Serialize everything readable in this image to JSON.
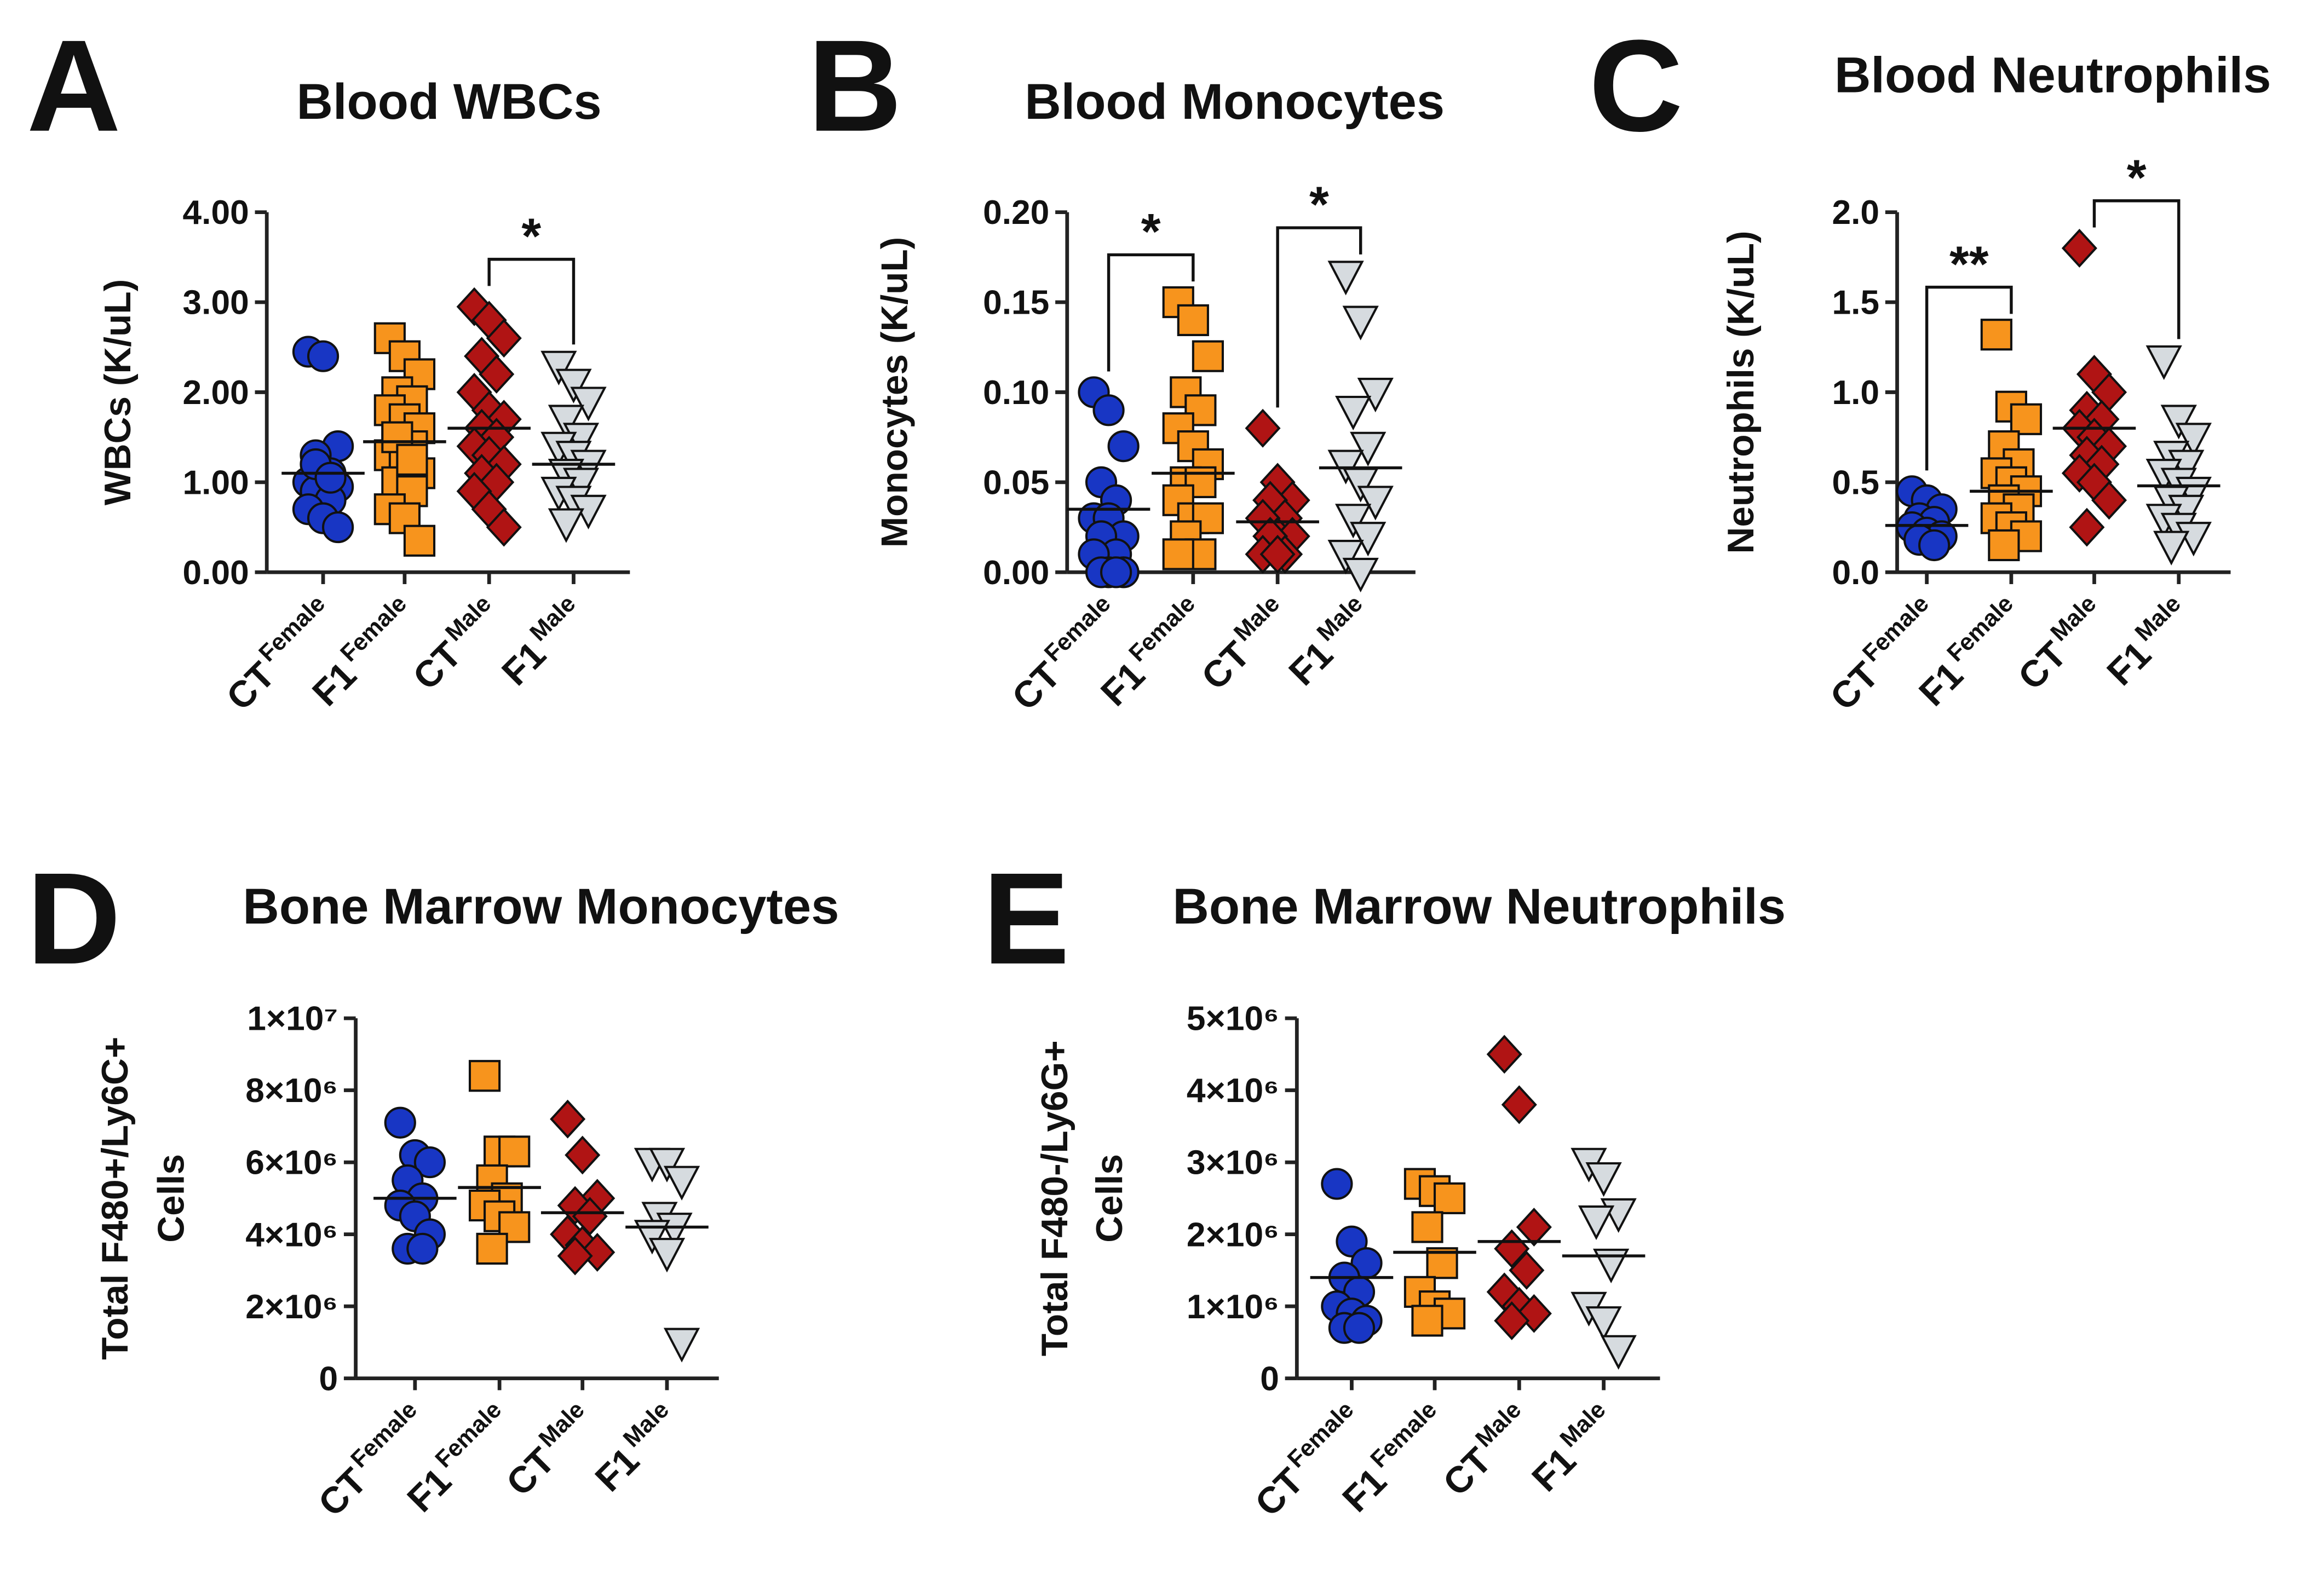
{
  "chart_data": [
    {
      "type": "scatter",
      "panel": "A",
      "title": "Blood WBCs",
      "ylabel": [
        "WBCs (K/uL)"
      ],
      "categories": [
        {
          "label": "CT",
          "sup": "Female"
        },
        {
          "label": "F1",
          "sup": "Female"
        },
        {
          "label": "CT",
          "sup": "Male"
        },
        {
          "label": "F1",
          "sup": "Male"
        }
      ],
      "ylim": [
        0,
        4
      ],
      "yticks": [
        {
          "value": 0,
          "label": "0.00"
        },
        {
          "value": 1,
          "label": "1.00"
        },
        {
          "value": 2,
          "label": "2.00"
        },
        {
          "value": 3,
          "label": "3.00"
        },
        {
          "value": 4,
          "label": "4.00"
        }
      ],
      "series": [
        {
          "marker": "circle",
          "color": "#1836c4",
          "mean": 1.1,
          "values": [
            2.45,
            2.4,
            1.4,
            1.3,
            1.1,
            1.0,
            1.0,
            0.95,
            0.9,
            0.8,
            0.7,
            0.6,
            0.5,
            1.2,
            1.05
          ]
        },
        {
          "marker": "square",
          "color": "#f7941d",
          "mean": 1.45,
          "values": [
            2.6,
            2.4,
            2.2,
            2.0,
            1.9,
            1.8,
            1.7,
            1.6,
            1.5,
            1.4,
            1.3,
            1.2,
            1.1,
            1.0,
            0.9,
            0.7,
            0.6,
            0.35,
            1.5,
            1.25
          ]
        },
        {
          "marker": "diamond",
          "color": "#b01414",
          "mean": 1.6,
          "values": [
            2.95,
            2.8,
            2.6,
            2.4,
            2.2,
            2.0,
            1.8,
            1.7,
            1.6,
            1.5,
            1.4,
            1.3,
            1.2,
            1.1,
            1.0,
            0.9,
            0.7,
            0.5
          ]
        },
        {
          "marker": "triangle-down",
          "color": "#d6dbdf",
          "mean": 1.2,
          "values": [
            2.3,
            2.1,
            1.9,
            1.7,
            1.5,
            1.4,
            1.3,
            1.2,
            1.1,
            1.0,
            0.9,
            0.8,
            0.7,
            0.55
          ]
        }
      ],
      "annotations": [
        {
          "text": "*",
          "from": 2,
          "to": 3
        }
      ]
    },
    {
      "type": "scatter",
      "panel": "B",
      "title": "Blood Monocytes",
      "ylabel": [
        "Monocytes (K/uL)"
      ],
      "categories": [
        {
          "label": "CT",
          "sup": "Female"
        },
        {
          "label": "F1",
          "sup": "Female"
        },
        {
          "label": "CT",
          "sup": "Male"
        },
        {
          "label": "F1",
          "sup": "Male"
        }
      ],
      "ylim": [
        0,
        0.2
      ],
      "yticks": [
        {
          "value": 0,
          "label": "0.00"
        },
        {
          "value": 0.05,
          "label": "0.05"
        },
        {
          "value": 0.1,
          "label": "0.10"
        },
        {
          "value": 0.15,
          "label": "0.15"
        },
        {
          "value": 0.2,
          "label": "0.20"
        }
      ],
      "series": [
        {
          "marker": "circle",
          "color": "#1836c4",
          "mean": 0.035,
          "values": [
            0.1,
            0.09,
            0.07,
            0.05,
            0.04,
            0.03,
            0.03,
            0.02,
            0.02,
            0.01,
            0.01,
            0,
            0,
            0,
            0
          ]
        },
        {
          "marker": "square",
          "color": "#f7941d",
          "mean": 0.055,
          "values": [
            0.15,
            0.14,
            0.12,
            0.1,
            0.09,
            0.08,
            0.07,
            0.06,
            0.05,
            0.05,
            0.04,
            0.03,
            0.03,
            0.02,
            0.01,
            0.01
          ]
        },
        {
          "marker": "diamond",
          "color": "#b01414",
          "mean": 0.028,
          "values": [
            0.08,
            0.05,
            0.04,
            0.04,
            0.03,
            0.03,
            0.02,
            0.02,
            0.02,
            0.01,
            0.01,
            0.01
          ]
        },
        {
          "marker": "triangle-down",
          "color": "#d6dbdf",
          "mean": 0.058,
          "values": [
            0.165,
            0.14,
            0.1,
            0.09,
            0.07,
            0.06,
            0.05,
            0.04,
            0.03,
            0.02,
            0.01,
            0
          ]
        }
      ],
      "annotations": [
        {
          "text": "*",
          "from": 0,
          "to": 1
        },
        {
          "text": "*",
          "from": 2,
          "to": 3
        }
      ]
    },
    {
      "type": "scatter",
      "panel": "C",
      "title": "Blood Neutrophils",
      "ylabel": [
        "Neutrophils (K/uL)"
      ],
      "categories": [
        {
          "label": "CT",
          "sup": "Female"
        },
        {
          "label": "F1",
          "sup": "Female"
        },
        {
          "label": "CT",
          "sup": "Male"
        },
        {
          "label": "F1",
          "sup": "Male"
        }
      ],
      "ylim": [
        0,
        2
      ],
      "yticks": [
        {
          "value": 0,
          "label": "0.0"
        },
        {
          "value": 0.5,
          "label": "0.5"
        },
        {
          "value": 1,
          "label": "1.0"
        },
        {
          "value": 1.5,
          "label": "1.5"
        },
        {
          "value": 2,
          "label": "2.0"
        }
      ],
      "series": [
        {
          "marker": "circle",
          "color": "#1836c4",
          "mean": 0.26,
          "values": [
            0.45,
            0.4,
            0.35,
            0.3,
            0.28,
            0.25,
            0.22,
            0.2,
            0.18,
            0.15
          ]
        },
        {
          "marker": "square",
          "color": "#f7941d",
          "mean": 0.45,
          "values": [
            1.32,
            0.92,
            0.85,
            0.7,
            0.6,
            0.55,
            0.5,
            0.45,
            0.4,
            0.35,
            0.3,
            0.25,
            0.2,
            0.15
          ]
        },
        {
          "marker": "diamond",
          "color": "#b01414",
          "mean": 0.8,
          "values": [
            1.8,
            1.1,
            1.0,
            0.9,
            0.85,
            0.8,
            0.75,
            0.7,
            0.65,
            0.6,
            0.55,
            0.5,
            0.4,
            0.25
          ]
        },
        {
          "marker": "triangle-down",
          "color": "#d6dbdf",
          "mean": 0.48,
          "values": [
            1.18,
            0.85,
            0.75,
            0.65,
            0.6,
            0.55,
            0.5,
            0.45,
            0.4,
            0.35,
            0.3,
            0.25,
            0.2,
            0.15
          ]
        }
      ],
      "annotations": [
        {
          "text": "**",
          "from": 0,
          "to": 1
        },
        {
          "text": "*",
          "from": 2,
          "to": 3
        }
      ]
    },
    {
      "type": "scatter",
      "panel": "D",
      "title": "Bone Marrow Monocytes",
      "ylabel": [
        "Total F480+/Ly6C+",
        "Cells"
      ],
      "categories": [
        {
          "label": "CT",
          "sup": "Female"
        },
        {
          "label": "F1",
          "sup": "Female"
        },
        {
          "label": "CT",
          "sup": "Male"
        },
        {
          "label": "F1",
          "sup": "Male"
        }
      ],
      "ylim": [
        0,
        10000000
      ],
      "yticks": [
        0,
        {
          "value": 2000000,
          "label": "2×10⁶"
        },
        {
          "value": 4000000,
          "label": "4×10⁶"
        },
        {
          "value": 6000000,
          "label": "6×10⁶"
        },
        {
          "value": 8000000,
          "label": "8×10⁶"
        },
        {
          "value": 10000000,
          "label": "1×10⁷"
        }
      ],
      "series": [
        {
          "marker": "circle",
          "color": "#1836c4",
          "mean": 5000000,
          "values": [
            7100000,
            6200000,
            6000000,
            5500000,
            5000000,
            4800000,
            4500000,
            4000000,
            3600000,
            3600000
          ]
        },
        {
          "marker": "square",
          "color": "#f7941d",
          "mean": 5300000,
          "values": [
            8400000,
            6300000,
            6300000,
            5500000,
            5000000,
            4800000,
            4500000,
            4200000,
            3600000
          ]
        },
        {
          "marker": "diamond",
          "color": "#b01414",
          "mean": 4600000,
          "values": [
            7200000,
            6200000,
            5000000,
            4800000,
            4500000,
            4000000,
            3700000,
            3500000,
            3400000
          ]
        },
        {
          "marker": "triangle-down",
          "color": "#d6dbdf",
          "mean": 4200000,
          "values": [
            6000000,
            6000000,
            5500000,
            4500000,
            4200000,
            4000000,
            3500000,
            1000000
          ]
        }
      ],
      "annotations": []
    },
    {
      "type": "scatter",
      "panel": "E",
      "title": "Bone Marrow Neutrophils",
      "ylabel": [
        "Total F480-/Ly6G+",
        "Cells"
      ],
      "categories": [
        {
          "label": "CT",
          "sup": "Female"
        },
        {
          "label": "F1",
          "sup": "Female"
        },
        {
          "label": "CT",
          "sup": "Male"
        },
        {
          "label": "F1",
          "sup": "Male"
        }
      ],
      "ylim": [
        0,
        5000000
      ],
      "yticks": [
        0,
        {
          "value": 1000000,
          "label": "1×10⁶"
        },
        {
          "value": 2000000,
          "label": "2×10⁶"
        },
        {
          "value": 3000000,
          "label": "3×10⁶"
        },
        {
          "value": 4000000,
          "label": "4×10⁶"
        },
        {
          "value": 5000000,
          "label": "5×10⁶"
        }
      ],
      "series": [
        {
          "marker": "circle",
          "color": "#1836c4",
          "mean": 1400000,
          "values": [
            2700000,
            1900000,
            1600000,
            1400000,
            1200000,
            1000000,
            900000,
            800000,
            700000,
            700000
          ]
        },
        {
          "marker": "square",
          "color": "#f7941d",
          "mean": 1750000,
          "values": [
            2700000,
            2600000,
            2500000,
            2100000,
            1600000,
            1200000,
            1000000,
            900000,
            800000
          ]
        },
        {
          "marker": "diamond",
          "color": "#b01414",
          "mean": 1900000,
          "values": [
            4500000,
            3800000,
            2100000,
            1800000,
            1500000,
            1200000,
            1000000,
            900000,
            800000
          ]
        },
        {
          "marker": "triangle-down",
          "color": "#d6dbdf",
          "mean": 1700000,
          "values": [
            3000000,
            2800000,
            2300000,
            2200000,
            1600000,
            1000000,
            800000,
            400000
          ]
        }
      ],
      "annotations": []
    }
  ]
}
